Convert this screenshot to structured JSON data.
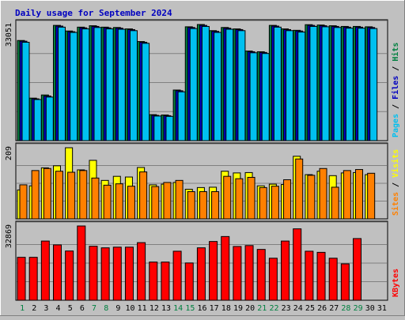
{
  "chart_data": {
    "type": "bar",
    "title": "Daily usage for September 2024",
    "categories": [
      "1",
      "2",
      "3",
      "4",
      "5",
      "6",
      "7",
      "8",
      "9",
      "10",
      "11",
      "12",
      "13",
      "14",
      "15",
      "16",
      "17",
      "18",
      "19",
      "20",
      "21",
      "22",
      "23",
      "24",
      "25",
      "26",
      "27",
      "28",
      "29",
      "30",
      "31"
    ],
    "weekend_days": [
      1,
      7,
      8,
      14,
      15,
      21,
      22,
      28,
      29
    ],
    "panels": [
      {
        "id": "hits-files-pages",
        "max_label": "33051",
        "ylim": [
          0,
          33051
        ],
        "right_label": [
          "Pages",
          "Files",
          "Hits"
        ],
        "right_label_colors": [
          "#00c0f0",
          "#0000c0",
          "#008040"
        ],
        "series": [
          {
            "name": "Hits",
            "color": "#008040",
            "values": [
              28500,
              12100,
              13000,
              32800,
              31200,
              32300,
              32700,
              32300,
              32200,
              31800,
              28200,
              7400,
              7300,
              14400,
              32400,
              33051,
              31300,
              32200,
              31800,
              25500,
              25300,
              32800,
              31800,
              31400,
              33000,
              32900,
              32700,
              32500,
              32500,
              32400,
              0
            ]
          },
          {
            "name": "Files",
            "color": "#0000c0",
            "values": [
              28300,
              11900,
              12700,
              32600,
              31000,
              32100,
              32500,
              32100,
              32000,
              31600,
              28000,
              7200,
              7100,
              14200,
              32200,
              32800,
              31100,
              32000,
              31600,
              25300,
              25100,
              32600,
              31600,
              31200,
              32800,
              32700,
              32500,
              32300,
              32300,
              32200,
              0
            ]
          },
          {
            "name": "Pages",
            "color": "#00c0f0",
            "values": [
              28000,
              11700,
              12400,
              32300,
              30800,
              31800,
              32200,
              31800,
              31700,
              31300,
              27700,
              7000,
              6900,
              13900,
              31900,
              32500,
              30800,
              31700,
              31300,
              25000,
              24800,
              32300,
              31300,
              30900,
              32500,
              32400,
              32200,
              32000,
              32000,
              31900,
              0
            ]
          }
        ]
      },
      {
        "id": "visits-sites",
        "max_label": "209",
        "ylim": [
          0,
          209
        ],
        "right_label": [
          "Sites",
          "Visits"
        ],
        "right_label_colors": [
          "#ff8000",
          "#ffff00"
        ],
        "series": [
          {
            "name": "Visits",
            "color": "#ffff00",
            "values": [
              85,
              97,
              150,
              156,
              209,
              144,
              172,
              113,
              125,
              123,
              151,
              100,
              102,
              107,
              87,
              92,
              93,
              140,
              135,
              136,
              97,
              102,
              101,
              184,
              130,
              140,
              127,
              135,
              136,
              130,
              0
            ]
          },
          {
            "name": "Sites",
            "color": "#ff8000",
            "values": [
              100,
              142,
              148,
              140,
              137,
              142,
              120,
              99,
              103,
              96,
              138,
              95,
              107,
              113,
              80,
              80,
              80,
              125,
              118,
              122,
              92,
              96,
              115,
              176,
              128,
              148,
              93,
              142,
              145,
              134,
              0
            ]
          }
        ]
      },
      {
        "id": "kbytes",
        "max_label": "32869",
        "ylim": [
          0,
          32869
        ],
        "right_label": [
          "KBytes"
        ],
        "right_label_colors": [
          "#ff0000"
        ],
        "series": [
          {
            "name": "KBytes",
            "color": "#ff0000",
            "values": [
              19000,
              19000,
              26200,
              24500,
              21800,
              32869,
              23900,
              23200,
              23500,
              23500,
              25500,
              16900,
              16900,
              21700,
              16500,
              23200,
              26000,
              28200,
              23800,
              24200,
              22500,
              18600,
              26200,
              31600,
              21700,
              21200,
              18600,
              16100,
              27300,
              0,
              0
            ]
          }
        ]
      }
    ]
  }
}
